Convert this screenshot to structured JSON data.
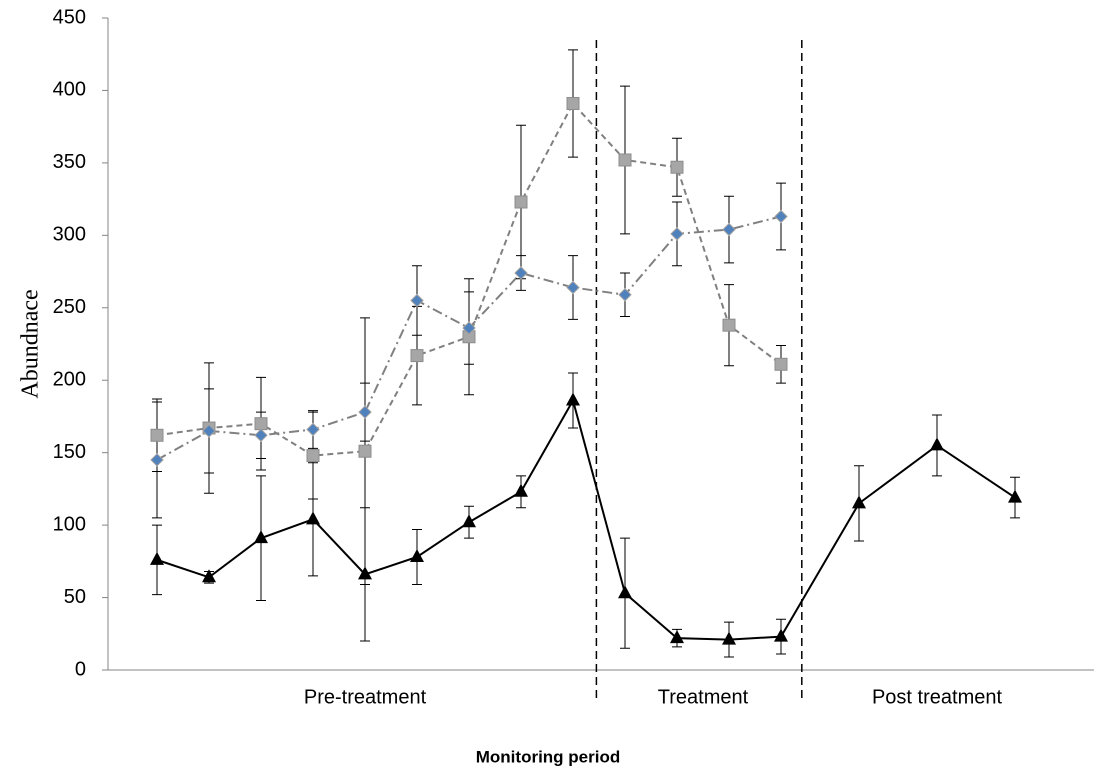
{
  "chart_data": {
    "type": "line",
    "y_label": "Abundnace",
    "x_label": "Monitoring period",
    "x": [
      1,
      2,
      3,
      4,
      5,
      6,
      7,
      8,
      9,
      10,
      11,
      12,
      13,
      14.5,
      16,
      17.5
    ],
    "xlim": [
      0,
      19
    ],
    "ylim": [
      0,
      450
    ],
    "yticks": [
      0,
      50,
      100,
      150,
      200,
      250,
      300,
      350,
      400,
      450
    ],
    "dividers": [
      9.45,
      13.4
    ],
    "periods": [
      {
        "label": "Pre-treatment",
        "x": 5
      },
      {
        "label": "Treatment",
        "x": 11.5
      },
      {
        "label": "Post treatment",
        "x": 16
      }
    ],
    "series": [
      {
        "marker": "triangle",
        "color": "#000000",
        "line_color": "#000000",
        "dash": "solid",
        "values": [
          76,
          64,
          91,
          104,
          66,
          78,
          102,
          123,
          186,
          53,
          22,
          21,
          23,
          115,
          155,
          119
        ],
        "errors": [
          24,
          4,
          43,
          39,
          46,
          19,
          11,
          11,
          19,
          38,
          6,
          12,
          12,
          26,
          21,
          14
        ]
      },
      {
        "marker": "square",
        "color": "#a6a6a6",
        "line_color": "#808080",
        "dash": "dashed",
        "values": [
          162,
          167,
          170,
          148,
          151,
          217,
          230,
          323,
          391,
          352,
          347,
          238,
          211,
          null,
          null,
          null
        ],
        "errors": [
          25,
          45,
          32,
          30,
          92,
          34,
          40,
          53,
          37,
          51,
          20,
          28,
          13,
          null,
          null,
          null
        ]
      },
      {
        "marker": "diamond",
        "color": "#4f81bd",
        "line_color": "#808080",
        "dash": "dashdot",
        "values": [
          145,
          165,
          162,
          166,
          178,
          255,
          236,
          274,
          264,
          259,
          301,
          304,
          313,
          null,
          null,
          null
        ],
        "errors": [
          40,
          29,
          16,
          13,
          20,
          24,
          25,
          12,
          22,
          15,
          22,
          23,
          23,
          null,
          null,
          null
        ]
      }
    ]
  }
}
